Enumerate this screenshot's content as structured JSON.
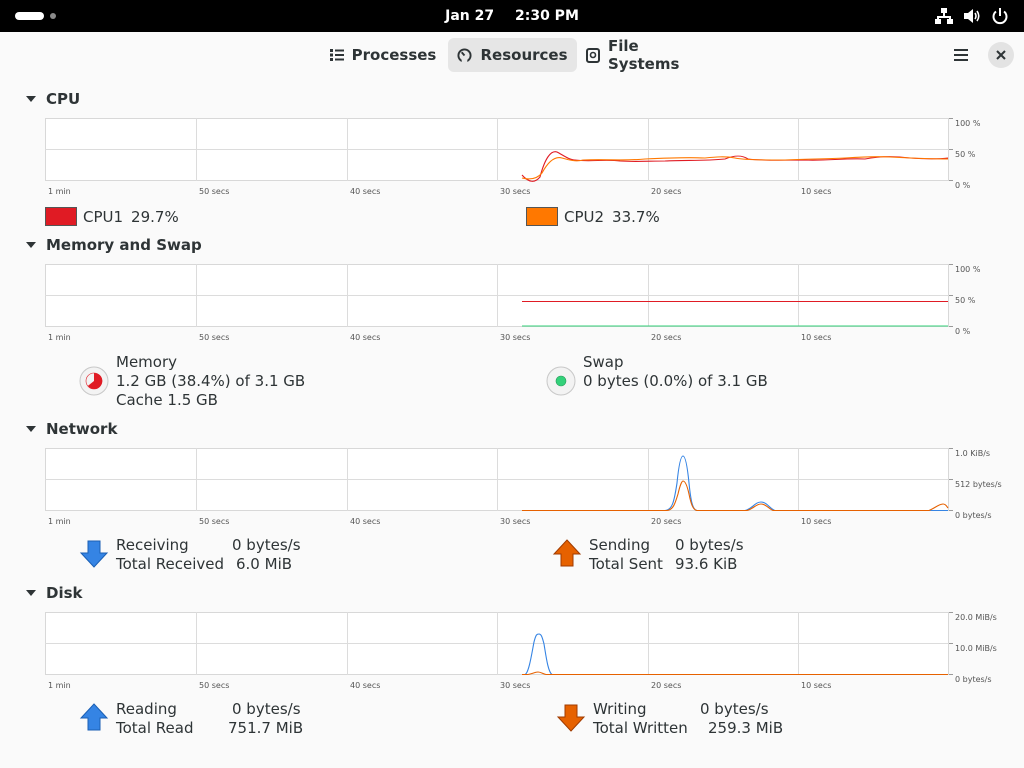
{
  "topbar": {
    "date": "Jan 27",
    "time": "2:30 PM"
  },
  "tabs": [
    {
      "label": "Processes",
      "icon": "list-icon"
    },
    {
      "label": "Resources",
      "icon": "gauge-icon"
    },
    {
      "label": "File Systems",
      "icon": "disk-icon"
    }
  ],
  "active_tab": "Resources",
  "x_ticks": [
    "1 min",
    "50 secs",
    "40 secs",
    "30 secs",
    "20 secs",
    "10 secs"
  ],
  "cpu": {
    "title": "CPU",
    "y_ticks": [
      "100 %",
      "50 %",
      "0 %"
    ],
    "cpu1": {
      "label": "CPU1",
      "value": "29.7%",
      "color": "#e01b24"
    },
    "cpu2": {
      "label": "CPU2",
      "value": "33.7%",
      "color": "#ff7800"
    }
  },
  "memory": {
    "title": "Memory and Swap",
    "y_ticks": [
      "100 %",
      "50 %",
      "0 %"
    ],
    "mem_label": "Memory",
    "mem_usage": "1.2 GB (38.4%) of 3.1 GB",
    "mem_cache": "Cache 1.5 GB",
    "swap_label": "Swap",
    "swap_usage": "0 bytes (0.0%) of 3.1 GB",
    "mem_color": "#e01b24",
    "swap_color": "#33d17a"
  },
  "network": {
    "title": "Network",
    "y_ticks": [
      "1.0 KiB/s",
      "512 bytes/s",
      "0 bytes/s"
    ],
    "receiving_label": "Receiving",
    "receiving_value": "0 bytes/s",
    "total_received_label": "Total Received",
    "total_received_value": "6.0 MiB",
    "sending_label": "Sending",
    "sending_value": "0 bytes/s",
    "total_sent_label": "Total Sent",
    "total_sent_value": "93.6 KiB",
    "recv_color": "#3584e4",
    "send_color": "#e66100"
  },
  "disk": {
    "title": "Disk",
    "y_ticks": [
      "20.0 MiB/s",
      "10.0 MiB/s",
      "0 bytes/s"
    ],
    "reading_label": "Reading",
    "reading_value": "0 bytes/s",
    "total_read_label": "Total Read",
    "total_read_value": "751.7 MiB",
    "writing_label": "Writing",
    "writing_value": "0 bytes/s",
    "total_written_label": "Total Written",
    "total_written_value": "259.3 MiB",
    "read_color": "#3584e4",
    "write_color": "#e66100"
  }
}
